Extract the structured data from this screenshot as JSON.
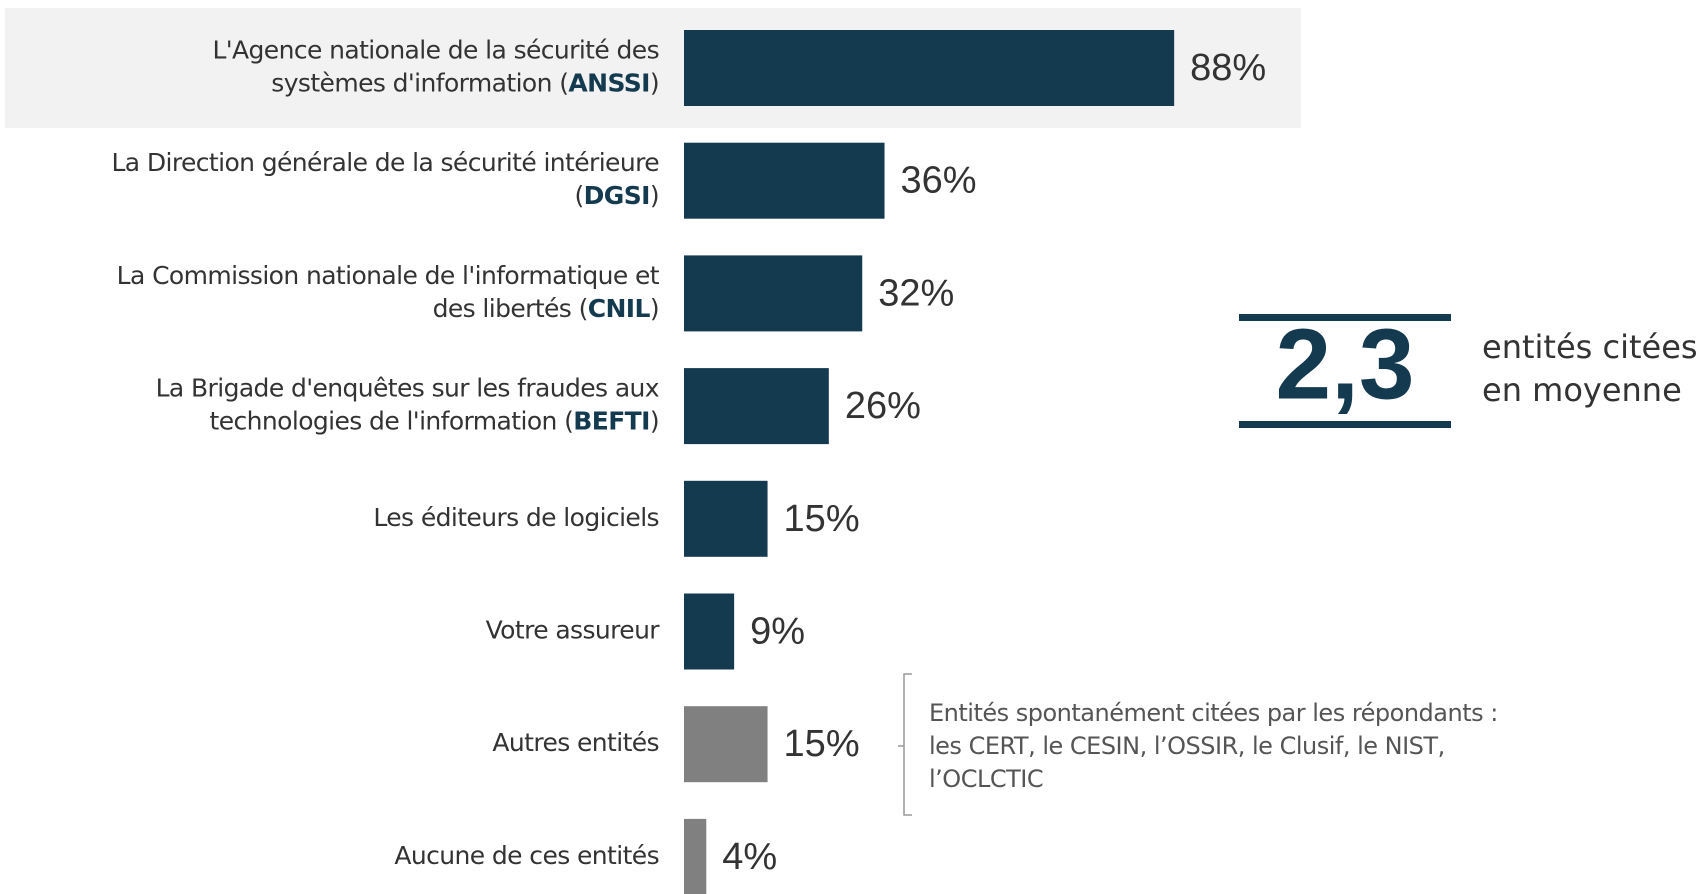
{
  "chart_data": {
    "type": "bar",
    "orientation": "horizontal",
    "categories": [
      "L'Agence nationale de la sécurité des systèmes d'information (ANSSI)",
      "La Direction générale de la sécurité intérieure (DGSI)",
      "La Commission nationale de l'informatique et des libertés (CNIL)",
      "La Brigade d'enquêtes sur les fraudes aux technologies de l'information (BEFTI)",
      "Les éditeurs de logiciels",
      "Votre assureur",
      "Autres entités",
      "Aucune de ces entités"
    ],
    "values": [
      88,
      36,
      32,
      26,
      15,
      9,
      15,
      4
    ],
    "value_labels": [
      "88%",
      "36%",
      "32%",
      "26%",
      "15%",
      "9%",
      "15%",
      "4%"
    ],
    "colors": [
      "#133a4f",
      "#133a4f",
      "#133a4f",
      "#133a4f",
      "#133a4f",
      "#133a4f",
      "#808080",
      "#808080"
    ],
    "xlim": [
      0,
      100
    ],
    "callout": {
      "value": "2,3",
      "text": [
        "entités citées",
        "en moyenne"
      ]
    },
    "note": [
      "Entités spontanément citées par les répondants :",
      "les CERT, le CESIN, l’OSSIR, le Clusif, le NIST,",
      "l’OCLCTIC"
    ]
  }
}
